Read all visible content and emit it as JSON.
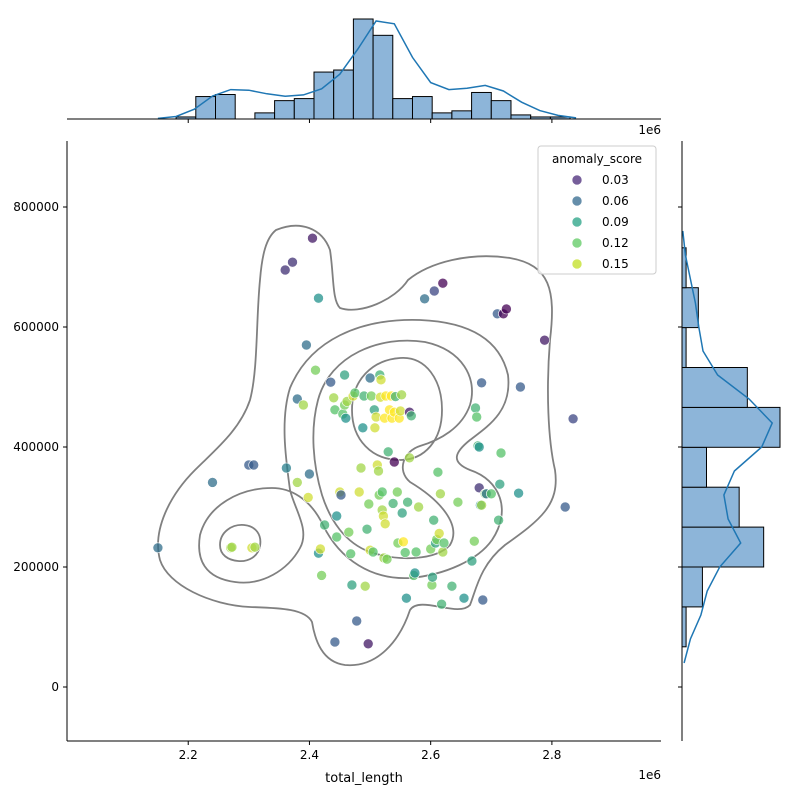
{
  "chart_data": {
    "type": "scatter",
    "title": "",
    "xlabel": "total_length",
    "ylabel": "",
    "x_offset_label": "1e6",
    "top_hist_offset_label": "1e6",
    "xlim": [
      2000000,
      2980000
    ],
    "ylim": [
      -90000,
      910000
    ],
    "x_ticks": [
      2200000,
      2400000,
      2600000,
      2800000
    ],
    "x_tick_labels": [
      "2.2",
      "2.4",
      "2.6",
      "2.8"
    ],
    "y_ticks": [
      0,
      200000,
      400000,
      600000,
      800000
    ],
    "y_tick_labels": [
      "0",
      "200000",
      "400000",
      "600000",
      "800000"
    ],
    "grid": false,
    "legend": {
      "title": "anomaly_score",
      "placement": "top-right",
      "entries": [
        {
          "label": "0.03",
          "color": "#482878"
        },
        {
          "label": "0.06",
          "color": "#31688e"
        },
        {
          "label": "0.09",
          "color": "#26a184"
        },
        {
          "label": "0.12",
          "color": "#5ec962"
        },
        {
          "label": "0.15",
          "color": "#c2df23"
        }
      ]
    },
    "colors": {
      "hist_fill": "#8db5d9",
      "hist_edge": "#000000",
      "kde_line": "#1f77b4",
      "contour": "#808080",
      "low_score": "#440154",
      "high_score": "#fde725"
    },
    "points": [
      [
        2150000,
        232000,
        0.07
      ],
      [
        2240000,
        341000,
        0.07
      ],
      [
        2270000,
        232000,
        0.14
      ],
      [
        2272000,
        233000,
        0.14
      ],
      [
        2300000,
        370000,
        0.06
      ],
      [
        2305000,
        232000,
        0.15
      ],
      [
        2308000,
        370000,
        0.06
      ],
      [
        2310000,
        233000,
        0.14
      ],
      [
        2360000,
        695000,
        0.04
      ],
      [
        2372000,
        708000,
        0.04
      ],
      [
        2362000,
        365000,
        0.08
      ],
      [
        2380000,
        480000,
        0.07
      ],
      [
        2380000,
        341000,
        0.14
      ],
      [
        2390000,
        470000,
        0.14
      ],
      [
        2395000,
        570000,
        0.07
      ],
      [
        2400000,
        355000,
        0.07
      ],
      [
        2398000,
        316000,
        0.15
      ],
      [
        2405000,
        748000,
        0.03
      ],
      [
        2415000,
        648000,
        0.09
      ],
      [
        2410000,
        528000,
        0.13
      ],
      [
        2415000,
        223000,
        0.09
      ],
      [
        2418000,
        230000,
        0.15
      ],
      [
        2420000,
        186000,
        0.13
      ],
      [
        2425000,
        270000,
        0.11
      ],
      [
        2435000,
        508000,
        0.06
      ],
      [
        2440000,
        482000,
        0.14
      ],
      [
        2442000,
        462000,
        0.12
      ],
      [
        2445000,
        285000,
        0.09
      ],
      [
        2445000,
        250000,
        0.12
      ],
      [
        2450000,
        325000,
        0.15
      ],
      [
        2452000,
        320000,
        0.06
      ],
      [
        2455000,
        455000,
        0.12
      ],
      [
        2458000,
        470000,
        0.13
      ],
      [
        2458000,
        520000,
        0.1
      ],
      [
        2460000,
        448000,
        0.09
      ],
      [
        2462000,
        476000,
        0.14
      ],
      [
        2465000,
        258000,
        0.13
      ],
      [
        2468000,
        222000,
        0.12
      ],
      [
        2470000,
        170000,
        0.1
      ],
      [
        2472000,
        485000,
        0.15
      ],
      [
        2475000,
        490000,
        0.12
      ],
      [
        2478000,
        110000,
        0.06
      ],
      [
        2482000,
        325000,
        0.15
      ],
      [
        2485000,
        365000,
        0.14
      ],
      [
        2488000,
        432000,
        0.09
      ],
      [
        2490000,
        485000,
        0.11
      ],
      [
        2492000,
        168000,
        0.14
      ],
      [
        2495000,
        263000,
        0.11
      ],
      [
        2498000,
        305000,
        0.13
      ],
      [
        2500000,
        228000,
        0.15
      ],
      [
        2500000,
        515000,
        0.07
      ],
      [
        2502000,
        485000,
        0.13
      ],
      [
        2505000,
        225000,
        0.12
      ],
      [
        2507000,
        462000,
        0.1
      ],
      [
        2508000,
        432000,
        0.15
      ],
      [
        2510000,
        450000,
        0.15
      ],
      [
        2512000,
        370000,
        0.15
      ],
      [
        2514000,
        360000,
        0.14
      ],
      [
        2515000,
        320000,
        0.13
      ],
      [
        2516000,
        520000,
        0.11
      ],
      [
        2517000,
        483000,
        0.15
      ],
      [
        2518000,
        512000,
        0.15
      ],
      [
        2520000,
        325000,
        0.12
      ],
      [
        2520000,
        295000,
        0.14
      ],
      [
        2522000,
        285000,
        0.15
      ],
      [
        2523000,
        215000,
        0.14
      ],
      [
        2524000,
        448000,
        0.16
      ],
      [
        2525000,
        272000,
        0.15
      ],
      [
        2526000,
        485000,
        0.16
      ],
      [
        2528000,
        213000,
        0.13
      ],
      [
        2530000,
        392000,
        0.11
      ],
      [
        2532000,
        462000,
        0.16
      ],
      [
        2535000,
        485000,
        0.16
      ],
      [
        2536000,
        448000,
        0.16
      ],
      [
        2538000,
        306000,
        0.11
      ],
      [
        2540000,
        458000,
        0.16
      ],
      [
        2540000,
        375000,
        0.02
      ],
      [
        2542000,
        484000,
        0.11
      ],
      [
        2545000,
        325000,
        0.13
      ],
      [
        2546000,
        240000,
        0.13
      ],
      [
        2548000,
        448000,
        0.16
      ],
      [
        2550000,
        460000,
        0.15
      ],
      [
        2552000,
        487000,
        0.14
      ],
      [
        2553000,
        290000,
        0.1
      ],
      [
        2555000,
        242000,
        0.16
      ],
      [
        2558000,
        224000,
        0.12
      ],
      [
        2560000,
        148000,
        0.09
      ],
      [
        2562000,
        308000,
        0.11
      ],
      [
        2565000,
        382000,
        0.14
      ],
      [
        2565000,
        458000,
        0.03
      ],
      [
        2568000,
        452000,
        0.11
      ],
      [
        2572000,
        186000,
        0.12
      ],
      [
        2574000,
        190000,
        0.09
      ],
      [
        2576000,
        225000,
        0.12
      ],
      [
        2580000,
        300000,
        0.14
      ],
      [
        2590000,
        647000,
        0.07
      ],
      [
        2600000,
        230000,
        0.13
      ],
      [
        2602000,
        170000,
        0.13
      ],
      [
        2603000,
        183000,
        0.1
      ],
      [
        2605000,
        278000,
        0.11
      ],
      [
        2606000,
        660000,
        0.05
      ],
      [
        2608000,
        240000,
        0.1
      ],
      [
        2610000,
        246000,
        0.13
      ],
      [
        2612000,
        358000,
        0.12
      ],
      [
        2614000,
        256000,
        0.15
      ],
      [
        2616000,
        322000,
        0.14
      ],
      [
        2618000,
        138000,
        0.11
      ],
      [
        2620000,
        673000,
        0.02
      ],
      [
        2620000,
        225000,
        0.14
      ],
      [
        2622000,
        240000,
        0.12
      ],
      [
        2635000,
        168000,
        0.11
      ],
      [
        2645000,
        308000,
        0.13
      ],
      [
        2655000,
        148000,
        0.09
      ],
      [
        2668000,
        210000,
        0.1
      ],
      [
        2672000,
        243000,
        0.13
      ],
      [
        2674000,
        465000,
        0.11
      ],
      [
        2676000,
        450000,
        0.12
      ],
      [
        2678000,
        402000,
        0.11
      ],
      [
        2680000,
        400000,
        0.09
      ],
      [
        2680000,
        332000,
        0.04
      ],
      [
        2682000,
        303000,
        0.09
      ],
      [
        2684000,
        303000,
        0.14
      ],
      [
        2684000,
        507000,
        0.06
      ],
      [
        2686000,
        145000,
        0.06
      ],
      [
        2690000,
        322000,
        0.13
      ],
      [
        2692000,
        322000,
        0.07
      ],
      [
        2700000,
        322000,
        0.12
      ],
      [
        2710000,
        622000,
        0.06
      ],
      [
        2712000,
        278000,
        0.11
      ],
      [
        2714000,
        338000,
        0.1
      ],
      [
        2716000,
        390000,
        0.12
      ],
      [
        2720000,
        622000,
        0.02
      ],
      [
        2725000,
        630000,
        0.02
      ],
      [
        2745000,
        323000,
        0.09
      ],
      [
        2748000,
        500000,
        0.06
      ],
      [
        2788000,
        578000,
        0.03
      ],
      [
        2822000,
        300000,
        0.06
      ],
      [
        2835000,
        447000,
        0.05
      ],
      [
        2442000,
        75000,
        0.06
      ],
      [
        2497000,
        72000,
        0.03
      ]
    ],
    "x_hist": {
      "bin_edges": [
        2180000,
        2212500,
        2245000,
        2277500,
        2310000,
        2342500,
        2375000,
        2407500,
        2440000,
        2472500,
        2505000,
        2537500,
        2570000,
        2602500,
        2635000,
        2667500,
        2700000,
        2732500,
        2765000,
        2797500,
        2830000
      ],
      "counts": [
        1,
        11,
        12,
        0,
        3,
        9,
        10,
        23,
        24,
        49,
        41,
        10,
        11,
        3,
        4,
        13,
        9,
        2,
        1,
        1
      ]
    },
    "x_kde": {
      "x": [
        2150000,
        2180000,
        2210000,
        2240000,
        2270000,
        2300000,
        2330000,
        2360000,
        2390000,
        2420000,
        2450000,
        2480000,
        2510000,
        2540000,
        2570000,
        2600000,
        2630000,
        2660000,
        2690000,
        2720000,
        2750000,
        2780000,
        2810000,
        2840000
      ],
      "density": [
        0.2,
        0.9,
        3.5,
        8.2,
        10.5,
        10.3,
        9.0,
        8.1,
        8.6,
        10.8,
        16.0,
        25.0,
        35.0,
        34.0,
        22.0,
        13.0,
        10.5,
        11.0,
        12.0,
        10.0,
        6.0,
        3.0,
        1.3,
        0.4
      ]
    },
    "y_hist": {
      "bin_edges": [
        67000,
        133500,
        200000,
        266500,
        333000,
        399500,
        466000,
        532500,
        599000,
        665500,
        732000,
        798500
      ],
      "counts": [
        1,
        5,
        20,
        14,
        6,
        24,
        16,
        1,
        4,
        1,
        0
      ]
    },
    "y_kde": {
      "y": [
        40000,
        80000,
        120000,
        160000,
        200000,
        240000,
        280000,
        320000,
        360000,
        400000,
        440000,
        480000,
        520000,
        560000,
        600000,
        640000,
        680000,
        720000,
        760000
      ],
      "density": [
        0.5,
        2.0,
        4.5,
        6.0,
        9.0,
        14.0,
        11.0,
        10.0,
        12.5,
        19.0,
        21.5,
        16.0,
        8.5,
        5.0,
        4.0,
        3.2,
        2.0,
        0.8,
        0.2
      ]
    }
  }
}
